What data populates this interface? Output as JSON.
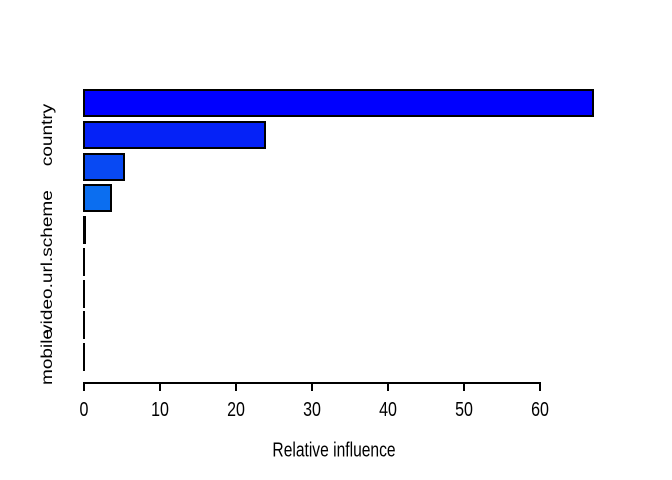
{
  "chart_data": {
    "type": "bar",
    "orientation": "horizontal",
    "title": "",
    "xlabel": "Relative influence",
    "ylabel": "",
    "xlim": [
      0,
      67
    ],
    "x_ticks": [
      0,
      10,
      20,
      30,
      40,
      50,
      60
    ],
    "grid": false,
    "legend": false,
    "axis_color": "#000000",
    "bar_border_color": "#000000",
    "bars": [
      {
        "label": "",
        "value": 67.0,
        "color": "#0000ff"
      },
      {
        "label": "country",
        "value": 23.8,
        "color": "#0522f7"
      },
      {
        "label": "",
        "value": 5.2,
        "color": "#0849f3"
      },
      {
        "label": "",
        "value": 3.6,
        "color": "#0b6ef0"
      },
      {
        "label": "",
        "value": 0.3,
        "color": "#0d7aee"
      },
      {
        "label": "video.url.scheme",
        "value": 0.08,
        "color": "#0d7aee"
      },
      {
        "label": "",
        "value": 0.06,
        "color": "#0d7aee"
      },
      {
        "label": "",
        "value": 0.05,
        "color": "#0d7aee"
      },
      {
        "label": "mobile",
        "value": 0.04,
        "color": "#0d7aee"
      }
    ]
  }
}
